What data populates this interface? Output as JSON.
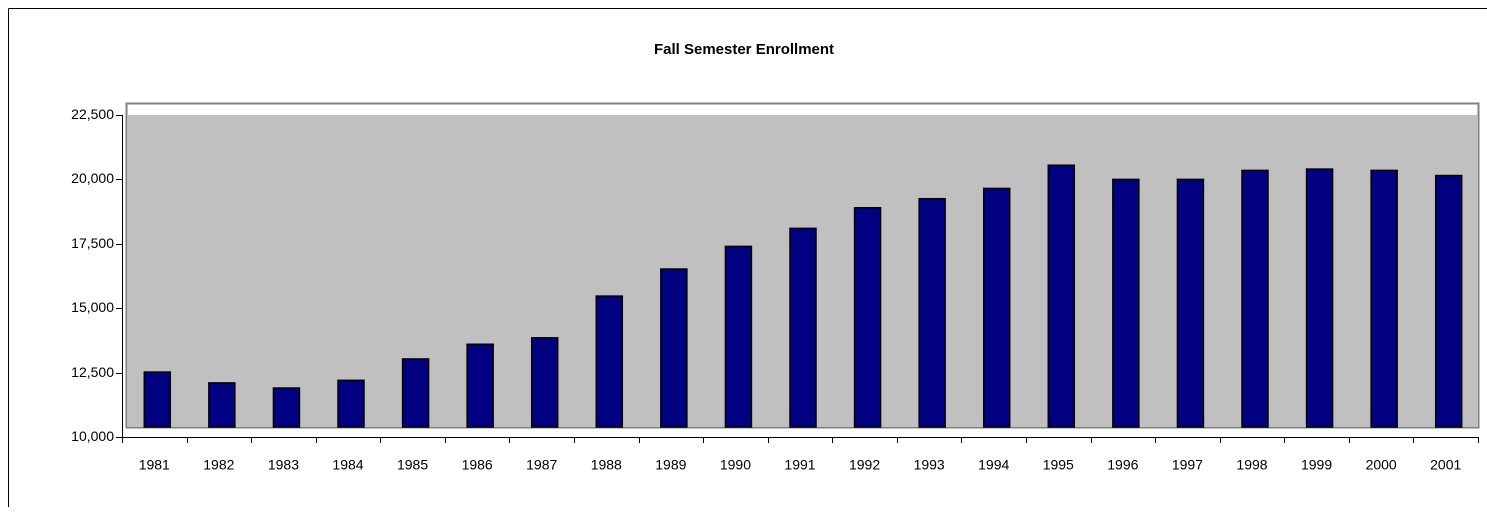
{
  "chart_data": {
    "type": "bar",
    "title": "Fall Semester Enrollment",
    "categories": [
      "1981",
      "1982",
      "1983",
      "1984",
      "1985",
      "1986",
      "1987",
      "1988",
      "1989",
      "1990",
      "1991",
      "1992",
      "1993",
      "1994",
      "1995",
      "1996",
      "1997",
      "1998",
      "1999",
      "2000",
      "2001"
    ],
    "values": [
      12520,
      12100,
      11900,
      12200,
      13030,
      13600,
      13850,
      15470,
      16520,
      17400,
      18100,
      18900,
      19250,
      19650,
      20550,
      20000,
      20000,
      20350,
      20400,
      20350,
      20150
    ],
    "color": "#000080",
    "ylim": [
      10000,
      22500
    ],
    "yticks": [
      {
        "value": 10000,
        "label": "10,000"
      },
      {
        "value": 12500,
        "label": "12,500"
      },
      {
        "value": 15000,
        "label": "15,000"
      },
      {
        "value": 17500,
        "label": "17,500"
      },
      {
        "value": 20000,
        "label": "20,000"
      },
      {
        "value": 22500,
        "label": "22,500"
      }
    ],
    "grid": false
  }
}
